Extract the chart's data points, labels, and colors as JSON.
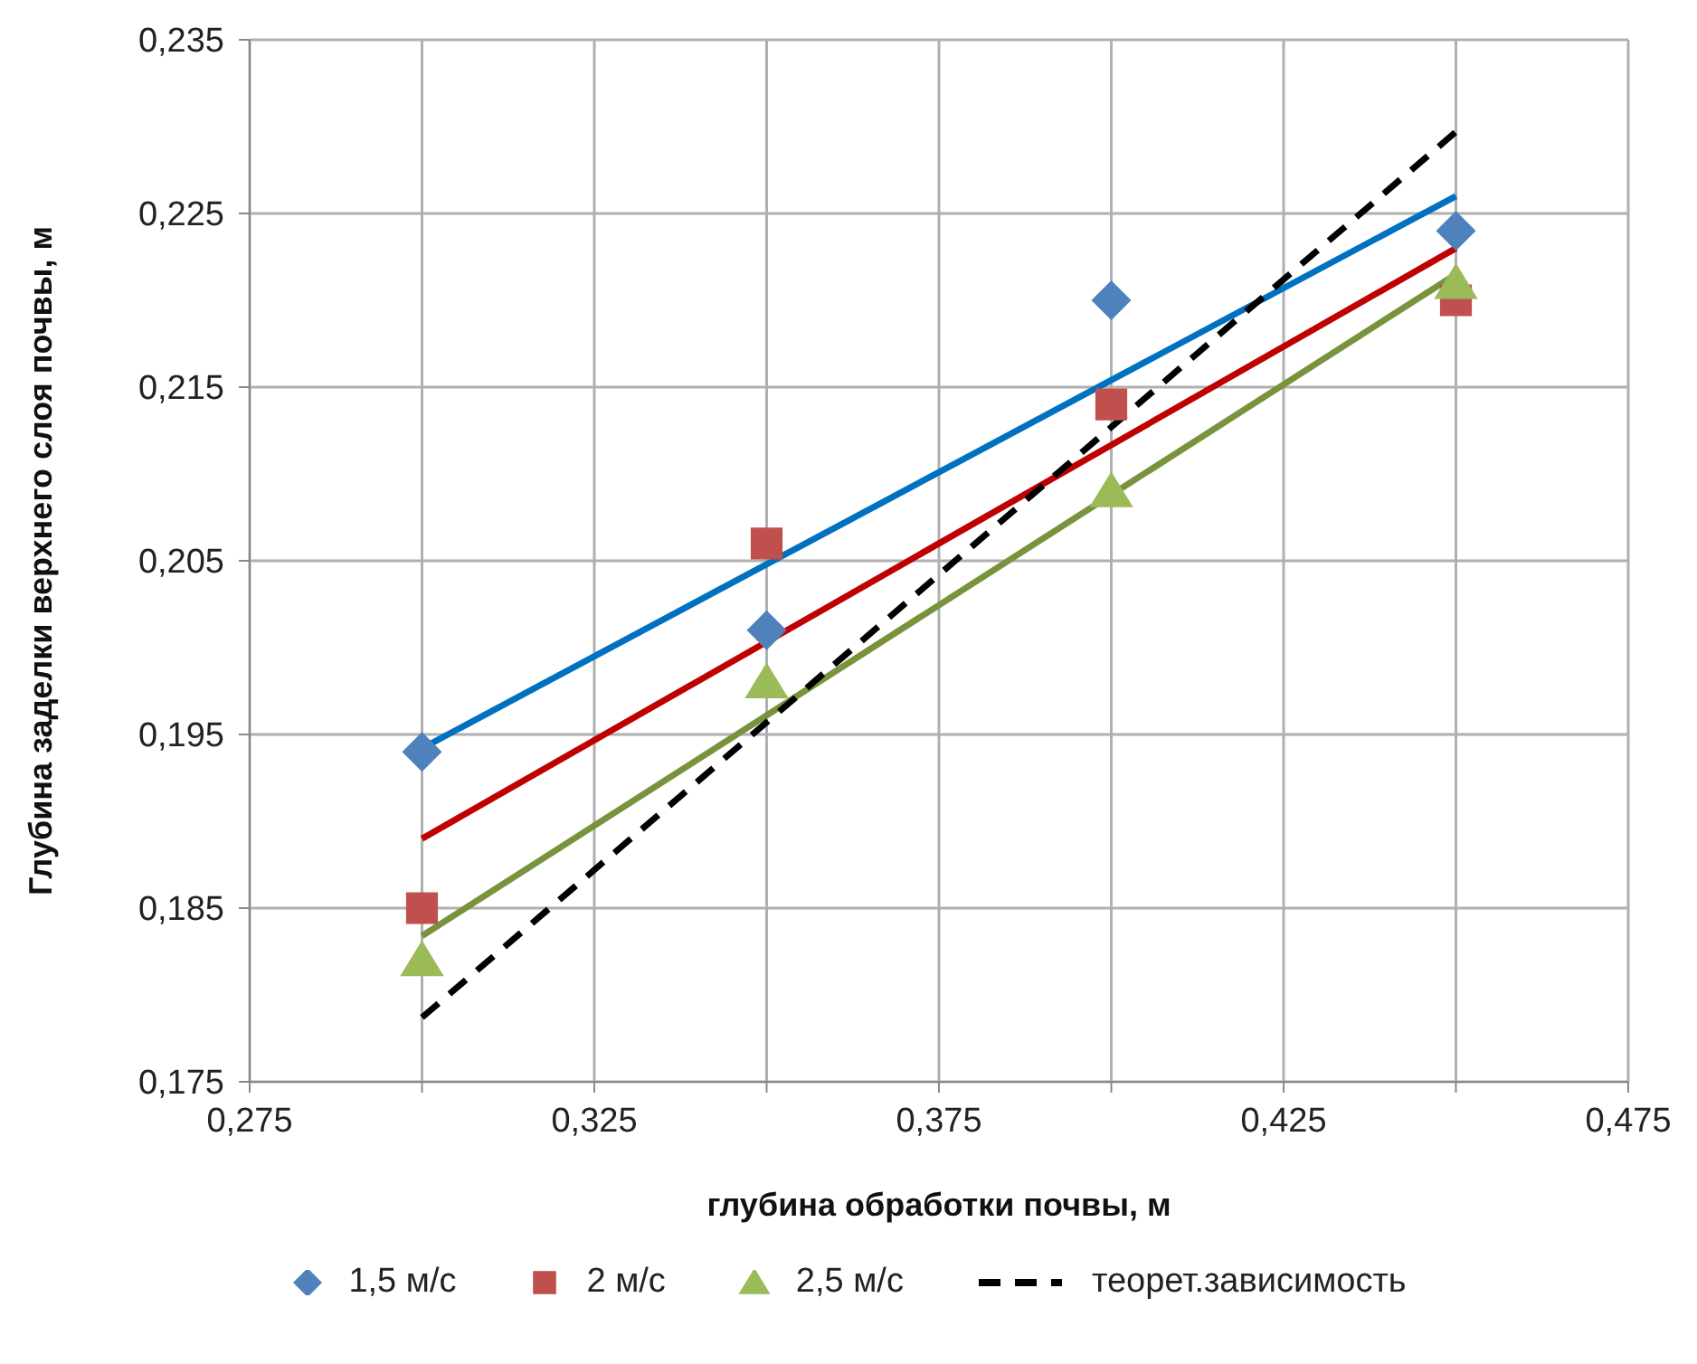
{
  "chart_data": {
    "type": "scatter",
    "xlabel": "глубина обработки почвы, м",
    "ylabel": "Глубина заделки верхнего слоя почвы, м",
    "xlim": [
      0.275,
      0.475
    ],
    "xticks": [
      {
        "value": 0.275,
        "label": "0,275"
      },
      {
        "value": 0.3,
        "label": null
      },
      {
        "value": 0.325,
        "label": "0,325"
      },
      {
        "value": 0.35,
        "label": null
      },
      {
        "value": 0.375,
        "label": "0,375"
      },
      {
        "value": 0.4,
        "label": null
      },
      {
        "value": 0.425,
        "label": "0,425"
      },
      {
        "value": 0.45,
        "label": null
      },
      {
        "value": 0.475,
        "label": "0,475"
      }
    ],
    "ylim": [
      0.175,
      0.235
    ],
    "yticks": [
      {
        "value": 0.175,
        "label": "0,175"
      },
      {
        "value": 0.185,
        "label": "0,185"
      },
      {
        "value": 0.195,
        "label": "0,195"
      },
      {
        "value": 0.205,
        "label": "0,205"
      },
      {
        "value": 0.215,
        "label": "0,215"
      },
      {
        "value": 0.225,
        "label": "0,225"
      },
      {
        "value": 0.235,
        "label": "0,235"
      }
    ],
    "grid": true,
    "legend": "bottom",
    "series": [
      {
        "name": "1,5 м/с",
        "marker": "diamond",
        "color": "#4f81bd",
        "x": [
          0.3,
          0.35,
          0.4,
          0.45
        ],
        "values": [
          0.194,
          0.201,
          0.22,
          0.224
        ]
      },
      {
        "name": "2 м/с",
        "marker": "square",
        "color": "#c0504d",
        "x": [
          0.3,
          0.35,
          0.4,
          0.45
        ],
        "values": [
          0.185,
          0.206,
          0.214,
          0.22
        ]
      },
      {
        "name": "2,5 м/с",
        "marker": "triangle",
        "color": "#9bbb59",
        "x": [
          0.3,
          0.35,
          0.4,
          0.45
        ],
        "values": [
          0.182,
          0.198,
          0.209,
          0.221
        ]
      },
      {
        "type": "line",
        "color": "#0070c0",
        "x": [
          0.3,
          0.45
        ],
        "values": [
          0.1942,
          0.226
        ]
      },
      {
        "type": "line",
        "color": "#c00000",
        "x": [
          0.3,
          0.45
        ],
        "values": [
          0.189,
          0.223
        ]
      },
      {
        "type": "line",
        "color": "#77933c",
        "x": [
          0.3,
          0.45
        ],
        "values": [
          0.1834,
          0.2215
        ]
      },
      {
        "name": "теорет.зависимость",
        "type": "line",
        "line_style": "dashed",
        "color": "#000000",
        "x": [
          0.3,
          0.45
        ],
        "values": [
          0.1787,
          0.2297
        ]
      }
    ]
  }
}
